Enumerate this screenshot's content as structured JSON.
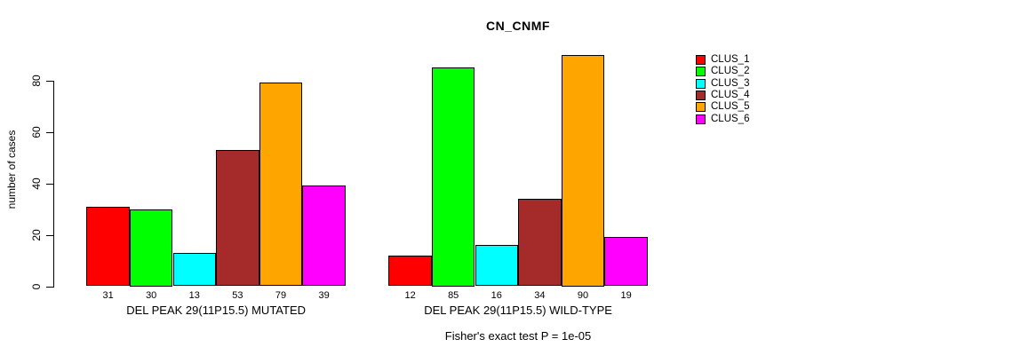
{
  "chart_data": {
    "type": "bar",
    "title": "CN_CNMF",
    "ylabel": "number of cases",
    "yticks": [
      0,
      20,
      40,
      60,
      80
    ],
    "ylim": [
      0,
      90
    ],
    "grid": false,
    "legend_position": "right-outside-top",
    "series_labels": [
      "CLUS_1",
      "CLUS_2",
      "CLUS_3",
      "CLUS_4",
      "CLUS_5",
      "CLUS_6"
    ],
    "colors": [
      "#FF0000",
      "#00FF00",
      "#00FFFF",
      "#A52A2A",
      "#FFA500",
      "#FF00FF"
    ],
    "groups": [
      {
        "label": "DEL PEAK 29(11P15.5) MUTATED",
        "values": [
          31,
          30,
          13,
          53,
          79,
          39
        ]
      },
      {
        "label": "DEL PEAK 29(11P15.5) WILD-TYPE",
        "values": [
          12,
          85,
          16,
          34,
          90,
          19
        ]
      }
    ],
    "annotation": "Fisher's exact test P = 1e-05"
  },
  "legend": {
    "entries": [
      {
        "label": "CLUS_1",
        "color": "#FF0000"
      },
      {
        "label": "CLUS_2",
        "color": "#00FF00"
      },
      {
        "label": "CLUS_3",
        "color": "#00FFFF"
      },
      {
        "label": "CLUS_4",
        "color": "#A52A2A"
      },
      {
        "label": "CLUS_5",
        "color": "#FFA500"
      },
      {
        "label": "CLUS_6",
        "color": "#FF00FF"
      }
    ]
  }
}
